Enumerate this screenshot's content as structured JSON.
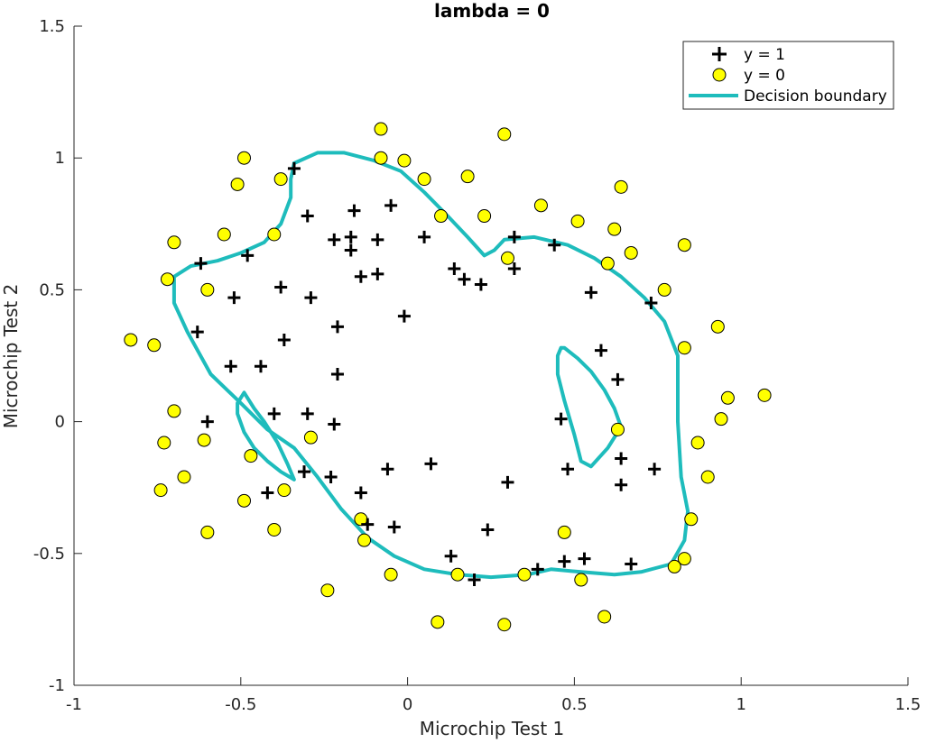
{
  "chart_data": {
    "type": "scatter",
    "title": "lambda = 0",
    "xlabel": "Microchip Test 1",
    "ylabel": "Microchip Test 2",
    "xlim": [
      -1,
      1.5
    ],
    "ylim": [
      -1,
      1.5
    ],
    "xticks": [
      -1,
      -0.5,
      0,
      0.5,
      1,
      1.5
    ],
    "yticks": [
      -1,
      -0.5,
      0,
      0.5,
      1,
      1.5
    ],
    "xtick_labels": [
      "-1",
      "-0.5",
      "0",
      "0.5",
      "1",
      "1.5"
    ],
    "ytick_labels": [
      "-1",
      "-0.5",
      "0",
      "0.5",
      "1",
      "1.5"
    ],
    "grid": false,
    "legend_position": "top-right",
    "colors": {
      "positive": "#000000",
      "negative": "#ffff00",
      "boundary": "#1ebcbc"
    },
    "legend": [
      {
        "label": "y = 1",
        "marker": "plus"
      },
      {
        "label": "y = 0",
        "marker": "circle"
      },
      {
        "label": "Decision boundary",
        "marker": "line"
      }
    ],
    "series": [
      {
        "name": "y = 1",
        "marker": "plus",
        "points": [
          [
            -0.34,
            0.96
          ],
          [
            -0.3,
            0.78
          ],
          [
            -0.16,
            0.8
          ],
          [
            -0.05,
            0.82
          ],
          [
            -0.22,
            0.69
          ],
          [
            -0.17,
            0.7
          ],
          [
            -0.17,
            0.65
          ],
          [
            -0.09,
            0.69
          ],
          [
            0.05,
            0.7
          ],
          [
            -0.62,
            0.6
          ],
          [
            -0.48,
            0.63
          ],
          [
            -0.52,
            0.47
          ],
          [
            -0.38,
            0.51
          ],
          [
            -0.29,
            0.47
          ],
          [
            -0.14,
            0.55
          ],
          [
            -0.09,
            0.56
          ],
          [
            -0.63,
            0.34
          ],
          [
            -0.37,
            0.31
          ],
          [
            -0.21,
            0.36
          ],
          [
            -0.01,
            0.4
          ],
          [
            -0.53,
            0.21
          ],
          [
            -0.44,
            0.21
          ],
          [
            -0.21,
            0.18
          ],
          [
            -0.6,
            0.0
          ],
          [
            -0.4,
            0.03
          ],
          [
            -0.3,
            0.03
          ],
          [
            -0.22,
            -0.01
          ],
          [
            0.14,
            0.58
          ],
          [
            0.17,
            0.54
          ],
          [
            0.22,
            0.52
          ],
          [
            0.32,
            0.7
          ],
          [
            0.32,
            0.58
          ],
          [
            0.44,
            0.67
          ],
          [
            0.55,
            0.49
          ],
          [
            0.58,
            0.27
          ],
          [
            0.63,
            0.16
          ],
          [
            0.73,
            0.45
          ],
          [
            0.46,
            0.01
          ],
          [
            0.48,
            -0.18
          ],
          [
            0.64,
            -0.24
          ],
          [
            0.64,
            -0.14
          ],
          [
            0.74,
            -0.18
          ],
          [
            0.3,
            -0.23
          ],
          [
            0.07,
            -0.16
          ],
          [
            -0.06,
            -0.18
          ],
          [
            -0.31,
            -0.19
          ],
          [
            -0.23,
            -0.21
          ],
          [
            -0.42,
            -0.27
          ],
          [
            -0.14,
            -0.27
          ],
          [
            -0.12,
            -0.39
          ],
          [
            -0.04,
            -0.4
          ],
          [
            0.24,
            -0.41
          ],
          [
            0.13,
            -0.51
          ],
          [
            0.2,
            -0.6
          ],
          [
            0.39,
            -0.56
          ],
          [
            0.47,
            -0.53
          ],
          [
            0.53,
            -0.52
          ],
          [
            0.67,
            -0.54
          ]
        ]
      },
      {
        "name": "y = 0",
        "marker": "circle",
        "points": [
          [
            -0.83,
            0.31
          ],
          [
            -0.76,
            0.29
          ],
          [
            -0.72,
            0.54
          ],
          [
            -0.7,
            0.68
          ],
          [
            -0.6,
            0.5
          ],
          [
            -0.55,
            0.71
          ],
          [
            -0.51,
            0.9
          ],
          [
            -0.49,
            1.0
          ],
          [
            -0.38,
            0.92
          ],
          [
            -0.4,
            0.71
          ],
          [
            -0.08,
            1.0
          ],
          [
            -0.08,
            1.11
          ],
          [
            -0.01,
            0.99
          ],
          [
            0.05,
            0.92
          ],
          [
            0.18,
            0.93
          ],
          [
            0.1,
            0.78
          ],
          [
            0.23,
            0.78
          ],
          [
            0.29,
            1.09
          ],
          [
            0.4,
            0.82
          ],
          [
            0.51,
            0.76
          ],
          [
            0.62,
            0.73
          ],
          [
            0.64,
            0.89
          ],
          [
            0.67,
            0.64
          ],
          [
            0.6,
            0.6
          ],
          [
            0.77,
            0.5
          ],
          [
            0.83,
            0.67
          ],
          [
            0.3,
            0.62
          ],
          [
            0.93,
            0.36
          ],
          [
            0.83,
            0.28
          ],
          [
            1.07,
            0.1
          ],
          [
            0.96,
            0.09
          ],
          [
            0.94,
            0.01
          ],
          [
            0.87,
            -0.08
          ],
          [
            0.63,
            -0.03
          ],
          [
            0.9,
            -0.21
          ],
          [
            0.85,
            -0.37
          ],
          [
            0.83,
            -0.52
          ],
          [
            0.8,
            -0.55
          ],
          [
            0.52,
            -0.6
          ],
          [
            0.59,
            -0.74
          ],
          [
            0.47,
            -0.42
          ],
          [
            0.35,
            -0.58
          ],
          [
            0.29,
            -0.77
          ],
          [
            0.15,
            -0.58
          ],
          [
            0.09,
            -0.76
          ],
          [
            -0.05,
            -0.58
          ],
          [
            -0.13,
            -0.45
          ],
          [
            -0.14,
            -0.37
          ],
          [
            -0.24,
            -0.64
          ],
          [
            -0.4,
            -0.41
          ],
          [
            -0.37,
            -0.26
          ],
          [
            -0.49,
            -0.3
          ],
          [
            -0.6,
            -0.42
          ],
          [
            -0.74,
            -0.26
          ],
          [
            -0.67,
            -0.21
          ],
          [
            -0.61,
            -0.07
          ],
          [
            -0.73,
            -0.08
          ],
          [
            -0.7,
            0.04
          ],
          [
            -0.47,
            -0.13
          ],
          [
            -0.29,
            -0.06
          ]
        ]
      },
      {
        "name": "Decision boundary",
        "marker": "line",
        "paths": [
          [
            [
              -0.34,
              0.98
            ],
            [
              -0.27,
              1.02
            ],
            [
              -0.19,
              1.02
            ],
            [
              -0.1,
              0.99
            ],
            [
              -0.02,
              0.95
            ],
            [
              0.05,
              0.87
            ],
            [
              0.12,
              0.78
            ],
            [
              0.18,
              0.7
            ],
            [
              0.23,
              0.63
            ],
            [
              0.26,
              0.65
            ],
            [
              0.29,
              0.69
            ],
            [
              0.38,
              0.7
            ],
            [
              0.48,
              0.67
            ],
            [
              0.56,
              0.62
            ],
            [
              0.64,
              0.55
            ],
            [
              0.71,
              0.47
            ],
            [
              0.77,
              0.38
            ],
            [
              0.81,
              0.25
            ],
            [
              0.81,
              0.0
            ],
            [
              0.82,
              -0.21
            ],
            [
              0.84,
              -0.34
            ],
            [
              0.83,
              -0.45
            ],
            [
              0.79,
              -0.54
            ],
            [
              0.7,
              -0.57
            ],
            [
              0.62,
              -0.58
            ],
            [
              0.52,
              -0.57
            ],
            [
              0.43,
              -0.56
            ],
            [
              0.36,
              -0.58
            ],
            [
              0.25,
              -0.59
            ],
            [
              0.15,
              -0.58
            ],
            [
              0.05,
              -0.56
            ],
            [
              -0.04,
              -0.51
            ],
            [
              -0.12,
              -0.44
            ],
            [
              -0.2,
              -0.33
            ],
            [
              -0.27,
              -0.21
            ],
            [
              -0.34,
              -0.1
            ],
            [
              -0.42,
              -0.03
            ],
            [
              -0.5,
              0.07
            ],
            [
              -0.59,
              0.18
            ],
            [
              -0.66,
              0.34
            ],
            [
              -0.7,
              0.45
            ],
            [
              -0.7,
              0.55
            ],
            [
              -0.65,
              0.59
            ],
            [
              -0.57,
              0.61
            ],
            [
              -0.5,
              0.64
            ],
            [
              -0.43,
              0.68
            ],
            [
              -0.38,
              0.75
            ],
            [
              -0.35,
              0.85
            ],
            [
              -0.35,
              0.92
            ],
            [
              -0.34,
              0.98
            ]
          ],
          [
            [
              -0.49,
              0.11
            ],
            [
              -0.51,
              0.07
            ],
            [
              -0.51,
              0.03
            ],
            [
              -0.49,
              -0.04
            ],
            [
              -0.46,
              -0.1
            ],
            [
              -0.42,
              -0.15
            ],
            [
              -0.38,
              -0.19
            ],
            [
              -0.34,
              -0.22
            ],
            [
              -0.36,
              -0.16
            ],
            [
              -0.39,
              -0.08
            ],
            [
              -0.43,
              0.0
            ],
            [
              -0.46,
              0.05
            ],
            [
              -0.49,
              0.11
            ]
          ],
          [
            [
              0.46,
              0.28
            ],
            [
              0.47,
              0.28
            ],
            [
              0.51,
              0.24
            ],
            [
              0.55,
              0.19
            ],
            [
              0.59,
              0.12
            ],
            [
              0.62,
              0.05
            ],
            [
              0.64,
              -0.02
            ],
            [
              0.6,
              -0.1
            ],
            [
              0.55,
              -0.17
            ],
            [
              0.52,
              -0.15
            ],
            [
              0.5,
              -0.05
            ],
            [
              0.47,
              0.08
            ],
            [
              0.45,
              0.18
            ],
            [
              0.45,
              0.25
            ],
            [
              0.46,
              0.28
            ]
          ]
        ]
      }
    ]
  }
}
